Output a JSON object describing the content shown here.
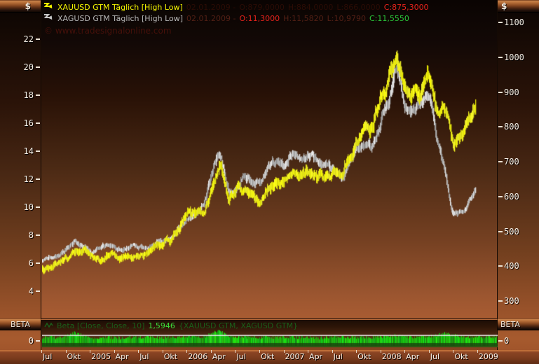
{
  "colors": {
    "gold": "#f8f800",
    "silver": "#b8b8b8",
    "down_red": "#e8231c",
    "up_green": "#2bc93a",
    "beta_green": "#22c822",
    "beta_value_green": "#3bdc3b",
    "dim_red_line1": "#2c0c05",
    "dim_red_line2": "#522015"
  },
  "icons": {
    "gold": "zigzag-arrow-icon",
    "silver": "zigzag-arrow-icon",
    "beta": "wave-icon"
  },
  "legend": {
    "line1": {
      "name": "XAUUSD GTM Täglich [High Low]",
      "date": "02.01.2009 -",
      "open": "O:879,0000",
      "high": "H:884,0000",
      "low": "L:866,0000",
      "close": "C:875,3000"
    },
    "line2": {
      "name": "XAGUSD GTM Täglich [High Low]",
      "date": "02.01.2009 -",
      "open": "O:11,3000",
      "high": "H:11,5820",
      "low": "L:10,9790",
      "close": "C:11,5550"
    }
  },
  "watermark": "© www.tradesignalonline.com",
  "axes": {
    "left": {
      "unit": "$",
      "ticks": [
        22,
        20,
        18,
        16,
        14,
        12,
        10,
        8,
        6,
        4
      ]
    },
    "right": {
      "unit": "$",
      "ticks": [
        1100,
        1000,
        900,
        800,
        700,
        600,
        500,
        400,
        300
      ]
    },
    "x": {
      "labels": [
        "Jul",
        "Okt",
        "2005",
        "Apr",
        "Jul",
        "Okt",
        "2006",
        "Apr",
        "Jul",
        "Okt",
        "2007",
        "Apr",
        "Jul",
        "Okt",
        "2008",
        "Apr",
        "Jul",
        "Okt",
        "2009"
      ]
    }
  },
  "beta_panel": {
    "label_left": "BETA",
    "label_right": "BETA",
    "indicator": "Beta [Close, Close, 10]",
    "value": "1,5946",
    "instruments": "{XAUUSD GTM, XAGUSD GTM}",
    "tick": "0"
  },
  "chart_data": {
    "type": "line",
    "style": "daily high-low bars, monthly anchor values listed",
    "x_start": "2004-07",
    "x_end": "2009-01",
    "interval": "monthly",
    "left_axis": {
      "label": "$",
      "range": [
        4,
        22
      ],
      "series": "XAGUSD GTM"
    },
    "right_axis": {
      "label": "$",
      "range": [
        300,
        1100
      ],
      "series": "XAUUSD GTM"
    },
    "series": [
      {
        "name": "XAUUSD GTM",
        "axis": "right",
        "color": "#f8f800",
        "values": [
          395,
          403,
          412,
          426,
          452,
          443,
          424,
          421,
          436,
          431,
          420,
          430,
          426,
          441,
          463,
          470,
          477,
          516,
          558,
          556,
          562,
          628,
          700,
          585,
          628,
          624,
          598,
          588,
          628,
          632,
          644,
          664,
          656,
          679,
          663,
          653,
          668,
          662,
          712,
          754,
          800,
          802,
          898,
          938,
          995,
          910,
          888,
          900,
          955,
          826,
          868,
          748,
          762,
          822,
          875
        ]
      },
      {
        "name": "XAGUSD GTM",
        "axis": "left",
        "color": "#b8b8b8",
        "values": [
          6.2,
          6.6,
          6.6,
          7.2,
          7.6,
          7.1,
          6.7,
          7.2,
          7.3,
          7.1,
          7.1,
          7.3,
          7.1,
          7.0,
          7.4,
          7.7,
          7.9,
          8.8,
          9.2,
          9.6,
          10.4,
          12.6,
          14.2,
          10.8,
          11.3,
          12.4,
          11.6,
          11.7,
          13.1,
          13.3,
          13.1,
          14.0,
          13.2,
          13.8,
          13.3,
          13.1,
          12.9,
          12.0,
          13.1,
          14.1,
          14.6,
          14.5,
          16.3,
          17.8,
          20.3,
          17.2,
          16.9,
          17.3,
          18.1,
          14.6,
          12.3,
          9.4,
          9.6,
          10.5,
          11.5
        ]
      }
    ],
    "beta_series": {
      "name": "Beta [Close, Close, 10]",
      "current": 1.5946,
      "reference_line": 1.5946,
      "color": "#22c822",
      "values": [
        1.3,
        1.5,
        1.4,
        1.8,
        2.8,
        1.9,
        1.5,
        1.3,
        1.5,
        1.4,
        1.3,
        1.5,
        1.4,
        1.6,
        1.5,
        1.4,
        1.5,
        1.6,
        1.7,
        1.5,
        1.6,
        2.2,
        3.2,
        1.9,
        1.5,
        1.6,
        1.5,
        1.4,
        1.6,
        1.5,
        1.5,
        1.6,
        1.4,
        1.5,
        1.4,
        1.3,
        1.5,
        1.7,
        1.4,
        1.5,
        1.6,
        1.5,
        1.6,
        1.7,
        1.9,
        1.6,
        1.5,
        1.4,
        1.6,
        1.8,
        2.5,
        2.0,
        1.7,
        1.5,
        1.6
      ]
    }
  }
}
